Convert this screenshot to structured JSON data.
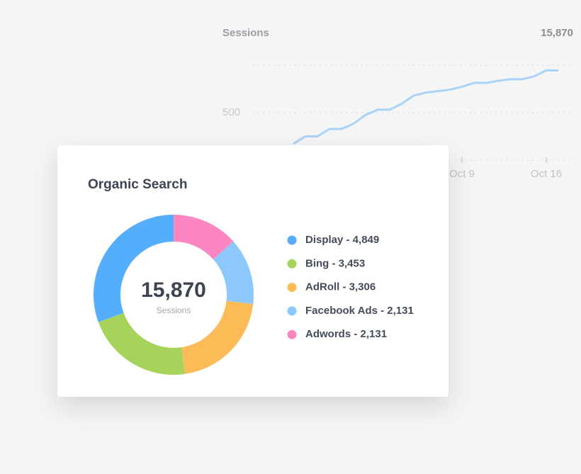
{
  "chart_data": [
    {
      "type": "line",
      "title": "Sessions",
      "total": "15,870",
      "x": [
        null,
        null,
        null,
        null,
        null,
        null,
        null,
        null,
        null,
        null,
        null,
        null,
        null,
        null,
        "Oct 9",
        null,
        null,
        null,
        null,
        null,
        null,
        "Oct 16",
        null
      ],
      "series": [
        {
          "color": "#a9d3f7",
          "values": [
            172,
            250,
            250,
            328,
            328,
            383,
            477,
            531,
            531,
            594,
            680,
            711,
            727,
            742,
            773,
            813,
            813,
            836,
            852,
            852,
            883,
            945,
            945
          ]
        }
      ],
      "ylim": [
        0,
        1000
      ],
      "yticks": [
        500
      ],
      "grid": true
    },
    {
      "type": "donut",
      "title": "Organic Search",
      "center_value": "15,870",
      "center_label": "Sessions",
      "labels": [
        "Display - 4,849",
        "Bing - 3,453",
        "AdRoll - 3,306",
        "Facebook Ads - 2,131",
        "Adwords - 2,131"
      ],
      "values": [
        4849,
        3453,
        3306,
        2131,
        2131
      ],
      "colors": [
        "#55aefc",
        "#a6d45a",
        "#fdbb58",
        "#8cc8fc",
        "#fb86c1"
      ]
    }
  ]
}
